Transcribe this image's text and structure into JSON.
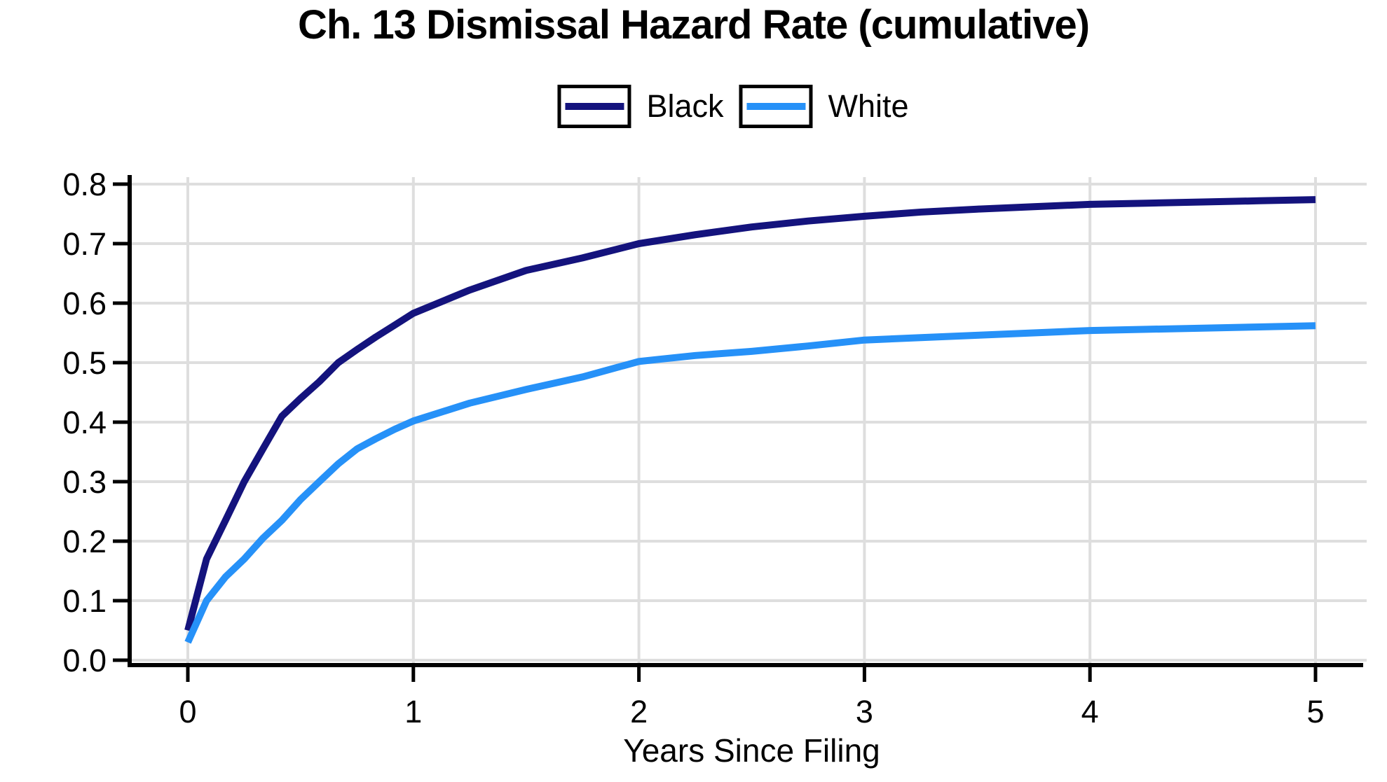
{
  "colors": {
    "background": "#FFFFFF",
    "grid": "#DEDEDE",
    "axis": "#000000",
    "text": "#000000",
    "series_black": "#14137D",
    "series_white": "#2691F8"
  },
  "chart_data": {
    "type": "line",
    "title": "Ch. 13 Dismissal Hazard Rate (cumulative)",
    "xlabel": "Years Since Filing",
    "ylabel": "",
    "xlim": [
      0,
      5
    ],
    "ylim": [
      0.0,
      0.8
    ],
    "grid": true,
    "legend_position": "top-center",
    "x_ticks": [
      {
        "v": 0,
        "label": "0"
      },
      {
        "v": 1,
        "label": "1"
      },
      {
        "v": 2,
        "label": "2"
      },
      {
        "v": 3,
        "label": "3"
      },
      {
        "v": 4,
        "label": "4"
      },
      {
        "v": 5,
        "label": "5"
      }
    ],
    "y_ticks": [
      {
        "v": 0.0,
        "label": "0.0"
      },
      {
        "v": 0.1,
        "label": "0.1"
      },
      {
        "v": 0.2,
        "label": "0.2"
      },
      {
        "v": 0.3,
        "label": "0.3"
      },
      {
        "v": 0.4,
        "label": "0.4"
      },
      {
        "v": 0.5,
        "label": "0.5"
      },
      {
        "v": 0.6,
        "label": "0.6"
      },
      {
        "v": 0.7,
        "label": "0.7"
      },
      {
        "v": 0.8,
        "label": "0.8"
      }
    ],
    "series": [
      {
        "name": "Black",
        "color": "#14137D",
        "x": [
          0,
          0.083,
          0.167,
          0.25,
          0.333,
          0.417,
          0.5,
          0.583,
          0.667,
          0.75,
          0.833,
          0.917,
          1.0,
          1.25,
          1.5,
          1.75,
          2.0,
          2.25,
          2.5,
          2.75,
          3.0,
          3.25,
          3.5,
          3.75,
          4.0,
          4.25,
          4.5,
          4.75,
          5.0
        ],
        "y": [
          0.05,
          0.17,
          0.235,
          0.3,
          0.355,
          0.41,
          0.44,
          0.468,
          0.5,
          0.522,
          0.543,
          0.563,
          0.583,
          0.622,
          0.655,
          0.676,
          0.7,
          0.715,
          0.728,
          0.738,
          0.746,
          0.753,
          0.758,
          0.762,
          0.766,
          0.768,
          0.77,
          0.772,
          0.774
        ]
      },
      {
        "name": "White",
        "color": "#2691F8",
        "x": [
          0,
          0.083,
          0.167,
          0.25,
          0.333,
          0.417,
          0.5,
          0.583,
          0.667,
          0.75,
          0.833,
          0.917,
          1.0,
          1.25,
          1.5,
          1.75,
          2.0,
          2.25,
          2.5,
          2.75,
          3.0,
          3.25,
          3.5,
          3.75,
          4.0,
          4.25,
          4.5,
          4.75,
          5.0
        ],
        "y": [
          0.03,
          0.1,
          0.14,
          0.17,
          0.205,
          0.235,
          0.27,
          0.3,
          0.33,
          0.355,
          0.372,
          0.388,
          0.402,
          0.432,
          0.455,
          0.476,
          0.502,
          0.512,
          0.519,
          0.528,
          0.538,
          0.542,
          0.546,
          0.55,
          0.554,
          0.556,
          0.558,
          0.56,
          0.562
        ]
      }
    ]
  }
}
